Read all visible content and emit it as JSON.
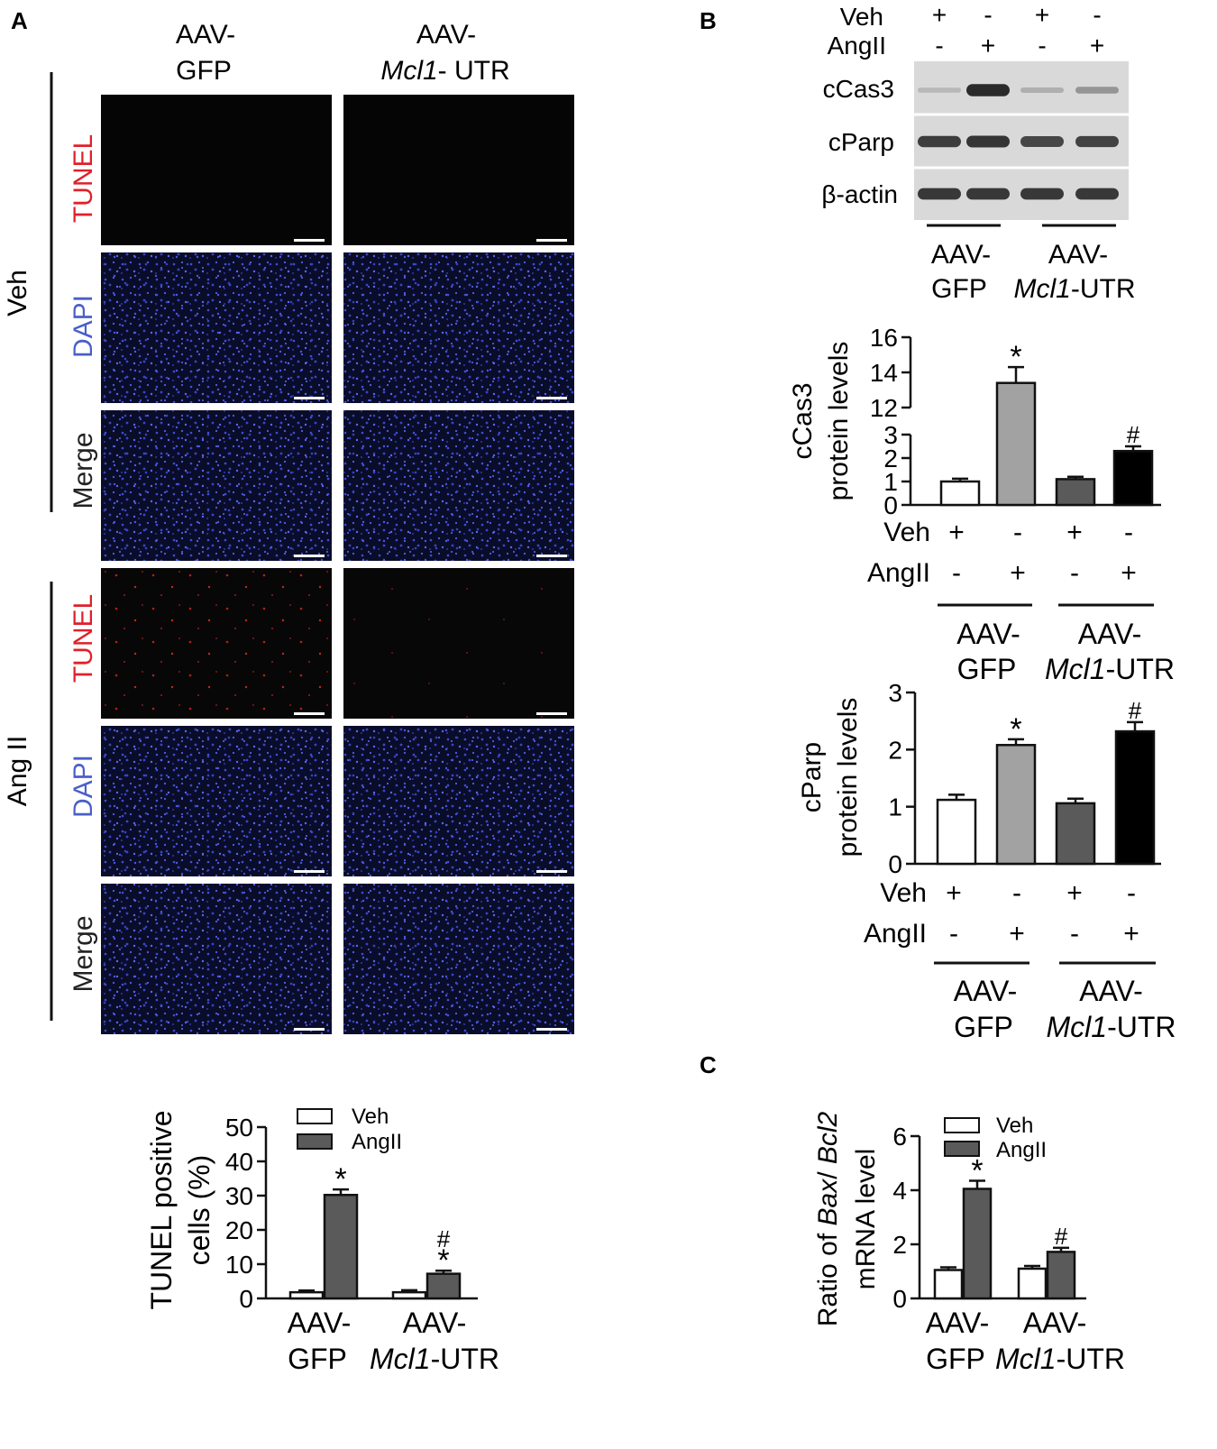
{
  "panel_labels": {
    "a": "A",
    "b": "B",
    "c": "C"
  },
  "panel_a": {
    "column_headers": [
      {
        "line1": "AAV-",
        "line2": "GFP",
        "italic": "",
        "rest": ""
      },
      {
        "line1": "AAV-",
        "line2": "",
        "italic": "Mcl1",
        "rest": "- UTR"
      }
    ],
    "group_labels": [
      "Veh",
      "Ang II"
    ],
    "row_labels": [
      "TUNEL",
      "DAPI",
      "Merge"
    ],
    "row_label_colors": [
      "#e0202a",
      "#4a5fc8",
      "#222222"
    ]
  },
  "western_blot": {
    "treatment_rows": [
      {
        "label": "Veh",
        "signs": [
          "+",
          "-",
          "+",
          "-"
        ]
      },
      {
        "label": "AngII",
        "signs": [
          "-",
          "+",
          "-",
          "+"
        ]
      }
    ],
    "bands": [
      {
        "label": "cCas3",
        "intensities": [
          0.15,
          0.95,
          0.2,
          0.35
        ]
      },
      {
        "label": "cParp",
        "intensities": [
          0.85,
          0.9,
          0.8,
          0.82
        ]
      },
      {
        "label": "β-actin",
        "intensities": [
          0.88,
          0.88,
          0.88,
          0.88
        ]
      }
    ],
    "groups": [
      {
        "line1": "AAV-",
        "line2": "GFP"
      },
      {
        "line1": "AAV-",
        "italic": "Mcl1",
        "rest": "-UTR"
      }
    ]
  },
  "chart_data": [
    {
      "id": "tunel",
      "type": "bar",
      "ylabel": "TUNEL positive cells (%)",
      "ylabel_lines": [
        "TUNEL positive",
        "cells (%)"
      ],
      "ylim": [
        0,
        50
      ],
      "yticks": [
        0,
        10,
        20,
        30,
        40,
        50
      ],
      "categories": [
        {
          "line1": "AAV-",
          "line2": "GFP"
        },
        {
          "line1": "AAV-",
          "italic": "Mcl1",
          "rest": "-UTR"
        }
      ],
      "series": [
        {
          "name": "Veh",
          "values": [
            1.8,
            1.8
          ],
          "errors": [
            0.5,
            0.6
          ],
          "color": "#ffffff"
        },
        {
          "name": "AngII",
          "values": [
            30.2,
            7.2
          ],
          "errors": [
            1.6,
            0.9
          ],
          "color": "#5a5a5a"
        }
      ],
      "annotations": [
        [
          "",
          ""
        ],
        [
          "*",
          "#*"
        ]
      ],
      "legend": "top-right"
    },
    {
      "id": "ccas3",
      "type": "bar",
      "ylabel": "cCas3 protein levels",
      "ylabel_lines": [
        "cCas3",
        "protein levels"
      ],
      "axis_break": true,
      "lower_yticks": [
        0,
        1,
        2,
        3
      ],
      "upper_yticks": [
        12,
        14,
        16
      ],
      "values": [
        1.0,
        13.4,
        1.1,
        2.3
      ],
      "errors": [
        0.12,
        0.9,
        0.1,
        0.2
      ],
      "colors": [
        "#ffffff",
        "#a2a2a2",
        "#5a5a5a",
        "#000000"
      ],
      "annotations": [
        "",
        "*",
        "",
        "#"
      ],
      "treatment_rows": [
        {
          "label": "Veh",
          "signs": [
            "+",
            "-",
            "+",
            "-"
          ]
        },
        {
          "label": "AngII",
          "signs": [
            "-",
            "+",
            "-",
            "+"
          ]
        }
      ],
      "groups": [
        {
          "line1": "AAV-",
          "line2": "GFP"
        },
        {
          "line1": "AAV-",
          "italic": "Mcl1",
          "rest": "-UTR"
        }
      ]
    },
    {
      "id": "cparp",
      "type": "bar",
      "ylabel": "cParp protein levels",
      "ylabel_lines": [
        "cParp",
        "protein levels"
      ],
      "ylim": [
        0,
        3
      ],
      "yticks": [
        0,
        1,
        2,
        3
      ],
      "values": [
        1.12,
        2.08,
        1.06,
        2.32
      ],
      "errors": [
        0.09,
        0.1,
        0.08,
        0.16
      ],
      "colors": [
        "#ffffff",
        "#a2a2a2",
        "#5a5a5a",
        "#000000"
      ],
      "annotations": [
        "",
        "*",
        "",
        "#"
      ],
      "treatment_rows": [
        {
          "label": "Veh",
          "signs": [
            "+",
            "-",
            "+",
            "-"
          ]
        },
        {
          "label": "AngII",
          "signs": [
            "-",
            "+",
            "-",
            "+"
          ]
        }
      ],
      "groups": [
        {
          "line1": "AAV-",
          "line2": "GFP"
        },
        {
          "line1": "AAV-",
          "italic": "Mcl1",
          "rest": "-UTR"
        }
      ]
    },
    {
      "id": "baxbcl2",
      "type": "bar",
      "ylabel": "Ratio of Bax/ Bcl2 mRNA level",
      "ylabel_line1": {
        "pre": "Ratio of ",
        "italic1": "Bax",
        "mid": "/ ",
        "italic2": "Bcl2"
      },
      "ylabel_line2": "mRNA level",
      "ylim": [
        0,
        6
      ],
      "yticks": [
        0,
        2,
        4,
        6
      ],
      "categories": [
        {
          "line1": "AAV-",
          "line2": "GFP"
        },
        {
          "line1": "AAV-",
          "italic": "Mcl1",
          "rest": "-UTR"
        }
      ],
      "series": [
        {
          "name": "Veh",
          "values": [
            1.05,
            1.1
          ],
          "errors": [
            0.1,
            0.1
          ],
          "color": "#ffffff"
        },
        {
          "name": "AngII",
          "values": [
            4.05,
            1.72
          ],
          "errors": [
            0.3,
            0.15
          ],
          "color": "#5a5a5a"
        }
      ],
      "annotations": [
        [
          "",
          ""
        ],
        [
          "*",
          "#"
        ]
      ],
      "legend": "top-right"
    }
  ]
}
